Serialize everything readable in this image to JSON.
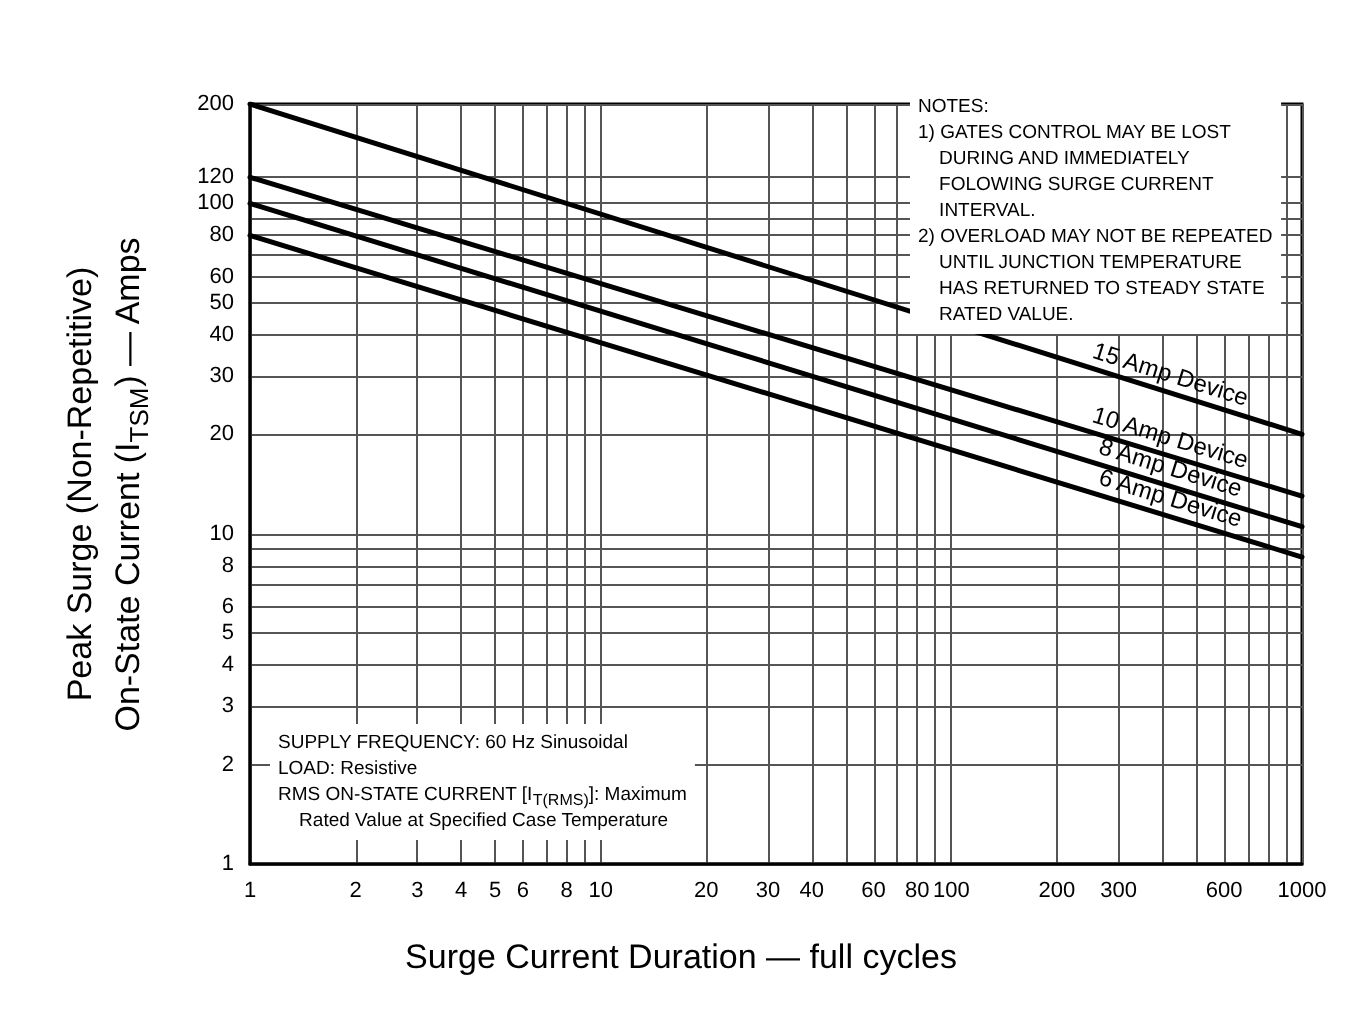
{
  "chart_data": {
    "type": "line",
    "xlabel": "Surge Current Duration — full cycles",
    "ylabel": "Peak Surge (Non-Repetitive)\nOn-State Current (I$_{TSM}$) — Amps",
    "x": [
      1,
      1000
    ],
    "series": [
      {
        "name": "15 Amp Device",
        "color": "#000000",
        "values": [
          200,
          20
        ]
      },
      {
        "name": "10 Amp Device",
        "color": "#000000",
        "values": [
          120,
          13
        ]
      },
      {
        "name": "8 Amp Device",
        "color": "#000000",
        "values": [
          100,
          10.5
        ]
      },
      {
        "name": "6 Amp Device",
        "color": "#000000",
        "values": [
          80,
          8.5
        ]
      }
    ],
    "log": "xy",
    "xlim": [
      1,
      1000
    ],
    "ylim": [
      1,
      200
    ],
    "xticks": [
      1,
      2,
      3,
      4,
      5,
      6,
      {
        "value": 7,
        "label": null
      },
      8,
      {
        "value": 9,
        "label": null
      },
      10,
      20,
      30,
      40,
      {
        "value": 50,
        "label": null
      },
      60,
      {
        "value": 70,
        "label": null
      },
      80,
      {
        "value": 90,
        "label": null
      },
      100,
      200,
      300,
      {
        "value": 400,
        "label": null
      },
      {
        "value": 500,
        "label": null
      },
      600,
      {
        "value": 700,
        "label": null
      },
      {
        "value": 800,
        "label": null
      },
      {
        "value": 900,
        "label": null
      },
      1000
    ],
    "yticks": [
      1,
      2,
      3,
      4,
      5,
      6,
      {
        "value": 7,
        "label": null
      },
      8,
      {
        "value": 9,
        "label": null
      },
      10,
      20,
      30,
      40,
      50,
      60,
      {
        "value": 70,
        "label": null
      },
      80,
      {
        "value": 90,
        "label": null
      },
      100,
      120,
      200
    ],
    "grid": true,
    "legend": false,
    "marker": "none",
    "line_style": "solid",
    "annotations": [
      "NOTES:\n1) GATES CONTROL MAY BE LOST\n    DURING AND IMMEDIATELY\n    FOLOWING SURGE CURRENT\n    INTERVAL.\n2) OVERLOAD MAY NOT BE REPEATED\n    UNTIL JUNCTION TEMPERATURE\n    HAS RETURNED TO STEADY STATE\n    RATED VALUE.",
      "SUPPLY FREQUENCY: 60 Hz Sinusoidal\nLOAD: Resistive\nRMS ON-STATE CURRENT [I$_{T(RMS)}$]: Maximum\n    Rated Value at Specified Case Temperature"
    ]
  }
}
